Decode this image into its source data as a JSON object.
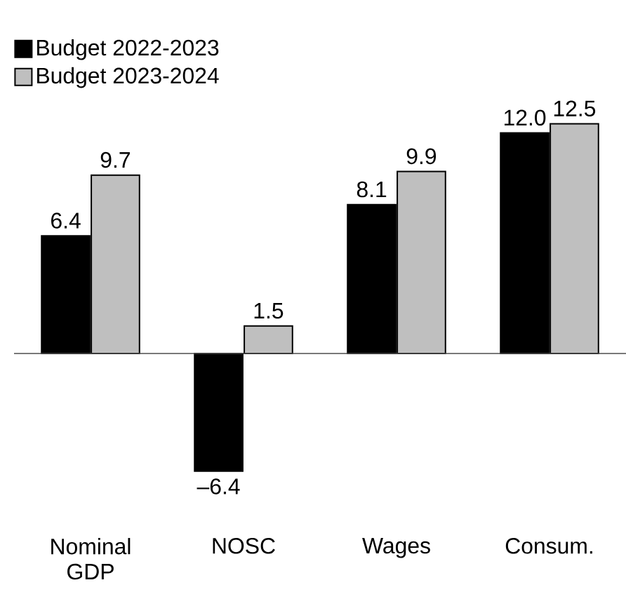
{
  "chart_data": {
    "type": "bar",
    "categories": [
      "Nominal GDP",
      "NOSC",
      "Wages",
      "Consum."
    ],
    "series": [
      {
        "name": "Budget 2022-2023",
        "color": "#000000",
        "values": [
          6.4,
          -6.4,
          8.1,
          12.0
        ],
        "value_labels": [
          "6.4",
          "–6.4",
          "8.1",
          "12.0"
        ]
      },
      {
        "name": "Budget 2023-2024",
        "color": "#bfbfbf",
        "values": [
          9.7,
          1.5,
          9.9,
          12.5
        ],
        "value_labels": [
          "9.7",
          "1.5",
          "9.9",
          "12.5"
        ]
      }
    ],
    "legend": "top left"
  }
}
